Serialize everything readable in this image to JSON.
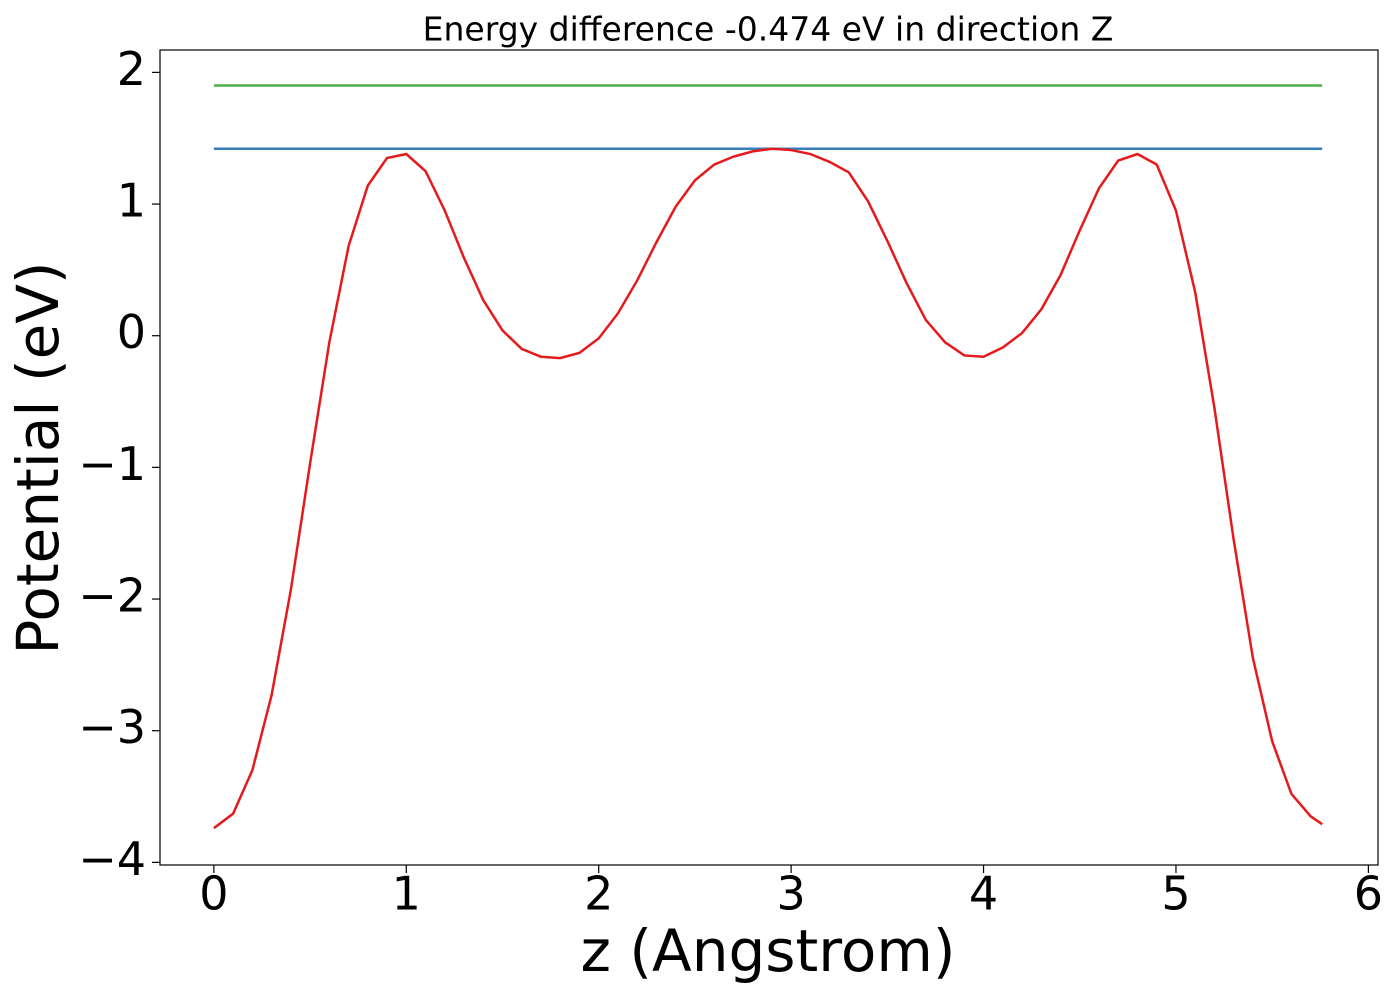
{
  "chart_data": {
    "type": "line",
    "title": "Energy difference -0.474 eV in direction Z",
    "x_label": "z (Angstrom)",
    "y_label": "Potential (eV)",
    "xlim": [
      -0.28,
      6.05
    ],
    "ylim": [
      -4.02,
      2.17
    ],
    "xticks": [
      0,
      1,
      2,
      3,
      4,
      5,
      6
    ],
    "yticks": [
      {
        "value": -4,
        "label": "−4"
      },
      {
        "value": -3,
        "label": "−3"
      },
      {
        "value": -2,
        "label": "−2"
      },
      {
        "value": -1,
        "label": "−1"
      },
      0,
      1,
      2
    ],
    "series": [
      {
        "color": "#e41a1c",
        "x": [
          0,
          0.1,
          0.2,
          0.3,
          0.4,
          0.5,
          0.6,
          0.7,
          0.8,
          0.9,
          1.0,
          1.1,
          1.2,
          1.3,
          1.4,
          1.5,
          1.6,
          1.7,
          1.8,
          1.9,
          2.0,
          2.1,
          2.2,
          2.3,
          2.4,
          2.5,
          2.6,
          2.7,
          2.8,
          2.9,
          3.0,
          3.1,
          3.2,
          3.3,
          3.4,
          3.5,
          3.6,
          3.7,
          3.8,
          3.9,
          4.0,
          4.1,
          4.2,
          4.3,
          4.4,
          4.5,
          4.6,
          4.7,
          4.8,
          4.9,
          5.0,
          5.1,
          5.2,
          5.3,
          5.4,
          5.5,
          5.6,
          5.7,
          5.76
        ],
        "values": [
          -3.74,
          -3.63,
          -3.3,
          -2.73,
          -1.93,
          -0.97,
          -0.05,
          0.68,
          1.14,
          1.35,
          1.38,
          1.25,
          0.95,
          0.59,
          0.27,
          0.04,
          -0.1,
          -0.16,
          -0.17,
          -0.13,
          -0.02,
          0.17,
          0.42,
          0.71,
          0.98,
          1.18,
          1.3,
          1.36,
          1.4,
          1.42,
          1.41,
          1.38,
          1.32,
          1.24,
          1.02,
          0.72,
          0.4,
          0.12,
          -0.05,
          -0.15,
          -0.16,
          -0.09,
          0.02,
          0.2,
          0.46,
          0.8,
          1.12,
          1.33,
          1.38,
          1.3,
          0.95,
          0.33,
          -0.55,
          -1.55,
          -2.45,
          -3.08,
          -3.48,
          -3.65,
          -3.71
        ]
      },
      {
        "color": "#377eb8",
        "x": [
          0,
          5.76
        ],
        "values": [
          1.42,
          1.42
        ]
      },
      {
        "color": "#4daf4a",
        "x": [
          0,
          5.76
        ],
        "values": [
          1.9,
          1.9
        ]
      }
    ]
  }
}
